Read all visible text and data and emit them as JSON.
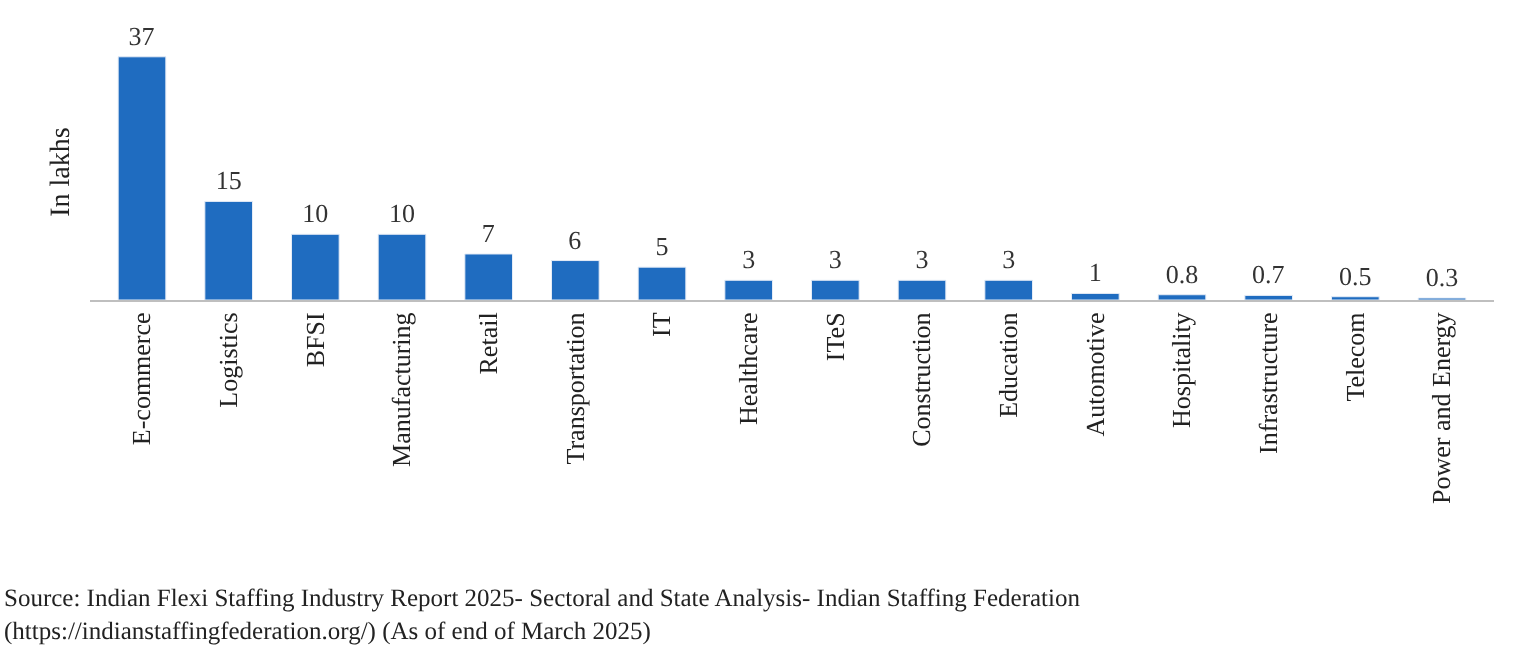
{
  "chart_data": {
    "type": "bar",
    "ylabel": "In lakhs",
    "categories": [
      "E-commerce",
      "Logistics",
      "BFSI",
      "Manufacturing",
      "Retail",
      "Transportation",
      "IT",
      "Healthcare",
      "ITeS",
      "Construction",
      "Education",
      "Automotive",
      "Hospitality",
      "Infrastructure",
      "Telecom",
      "Power and Energy"
    ],
    "values": [
      37,
      15,
      10,
      10,
      7,
      6,
      5,
      3,
      3,
      3,
      3,
      1,
      0.8,
      0.7,
      0.5,
      0.3
    ],
    "color": "#1f6cc0",
    "data_labels": true,
    "annotations": [
      "Source: Indian Flexi Staffing Industry Report 2025- Sectoral and State Analysis- Indian Staffing Federation (https://indianstaffingfederation.org/) (As of end of March 2025)"
    ]
  }
}
